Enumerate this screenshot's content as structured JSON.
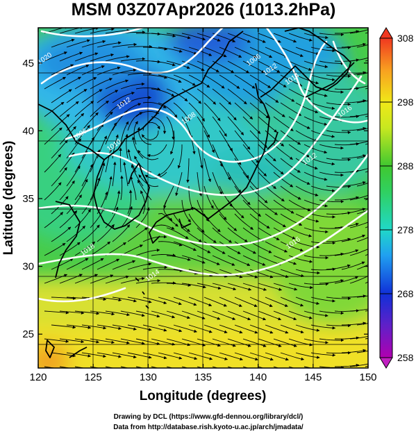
{
  "title": "MSM 03Z07Apr2026 (1013.2hPa)",
  "map": {
    "xlabel": "Longitude (degrees)",
    "ylabel": "Latitude  (degrees)",
    "lon_range": [
      120,
      150
    ],
    "lat_range": [
      22.5,
      47.6
    ],
    "lon_ticks": [
      "120",
      "125",
      "130",
      "135",
      "140",
      "145",
      "150"
    ],
    "lat_ticks": [
      "25",
      "30",
      "35",
      "40",
      "45"
    ],
    "contour_labels": [
      {
        "text": "1020",
        "lon": 120.7,
        "lat": 45.2
      },
      {
        "text": "1012",
        "lon": 127.9,
        "lat": 41.9
      },
      {
        "text": "1006",
        "lon": 123.9,
        "lat": 39.6
      },
      {
        "text": "1008",
        "lon": 133.8,
        "lat": 40.8
      },
      {
        "text": "1006",
        "lon": 139.7,
        "lat": 45.1
      },
      {
        "text": "1012",
        "lon": 141.2,
        "lat": 44.4
      },
      {
        "text": "1014",
        "lon": 143.2,
        "lat": 43.7
      },
      {
        "text": "1016",
        "lon": 148.0,
        "lat": 41.3
      },
      {
        "text": "1012",
        "lon": 144.8,
        "lat": 37.8
      },
      {
        "text": "1016",
        "lon": 143.3,
        "lat": 31.6
      },
      {
        "text": "1014",
        "lon": 130.5,
        "lat": 29.2
      },
      {
        "text": "1018",
        "lon": 124.6,
        "lat": 31.1
      },
      {
        "text": "1010",
        "lon": 127.0,
        "lat": 38.8
      }
    ]
  },
  "colorbar": {
    "ticks": [
      "308",
      "298",
      "288",
      "278",
      "268",
      "258"
    ],
    "min": 258,
    "max": 308
  },
  "credits": {
    "line1": "Drawing by DCL (https://www.gfd-dennou.org/library/dcl/)",
    "line2": "Data from http://database.rish.kyoto-u.ac.jp/arch/jmadata/"
  }
}
